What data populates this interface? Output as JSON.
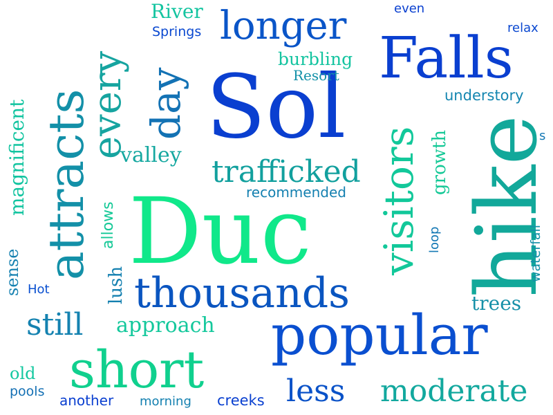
{
  "words": [
    {
      "text": "Sol",
      "color": "#0a3fd0"
    },
    {
      "text": "Duc",
      "color": "#10e88a"
    },
    {
      "text": "hike",
      "color": "#12a89a"
    },
    {
      "text": "Falls",
      "color": "#0a3fd0"
    },
    {
      "text": "popular",
      "color": "#0a4fd0"
    },
    {
      "text": "thousands",
      "color": "#0a55c0"
    },
    {
      "text": "short",
      "color": "#10d08e"
    },
    {
      "text": "attracts",
      "color": "#1390a8"
    },
    {
      "text": "visitors",
      "color": "#12c89a"
    },
    {
      "text": "longer",
      "color": "#0a55c8"
    },
    {
      "text": "every",
      "color": "#16a4a0"
    },
    {
      "text": "day",
      "color": "#1372b4"
    },
    {
      "text": "trafficked",
      "color": "#12a09e"
    },
    {
      "text": "moderate",
      "color": "#12a89e"
    },
    {
      "text": "still",
      "color": "#1482b0"
    },
    {
      "text": "less",
      "color": "#0a52c8"
    },
    {
      "text": "magnificent",
      "color": "#12c4a0"
    },
    {
      "text": "valley",
      "color": "#16a8a0"
    },
    {
      "text": "approach",
      "color": "#14c89c"
    },
    {
      "text": "trees",
      "color": "#1690a8"
    },
    {
      "text": "growth",
      "color": "#14c896"
    },
    {
      "text": "River",
      "color": "#14c4a0"
    },
    {
      "text": "Springs",
      "color": "#0a48d0"
    },
    {
      "text": "burbling",
      "color": "#14c4a0"
    },
    {
      "text": "Resort",
      "color": "#1290a8"
    },
    {
      "text": "understory",
      "color": "#1486b0"
    },
    {
      "text": "recommended",
      "color": "#1480b0"
    },
    {
      "text": "allows",
      "color": "#14c896"
    },
    {
      "text": "lush",
      "color": "#1480b0"
    },
    {
      "text": "sense",
      "color": "#1480b0"
    },
    {
      "text": "Hot",
      "color": "#0a50d0"
    },
    {
      "text": "old",
      "color": "#14c8a0"
    },
    {
      "text": "pools",
      "color": "#1470b4"
    },
    {
      "text": "another",
      "color": "#0a3fd0"
    },
    {
      "text": "morning",
      "color": "#1480b0"
    },
    {
      "text": "creeks",
      "color": "#0a40d0"
    },
    {
      "text": "waterfall",
      "color": "#1490a8"
    },
    {
      "text": "loop",
      "color": "#1478b4"
    },
    {
      "text": "even",
      "color": "#0a40d0"
    },
    {
      "text": "relax",
      "color": "#0a48d0"
    },
    {
      "text": "s",
      "color": "#1478b4"
    }
  ]
}
